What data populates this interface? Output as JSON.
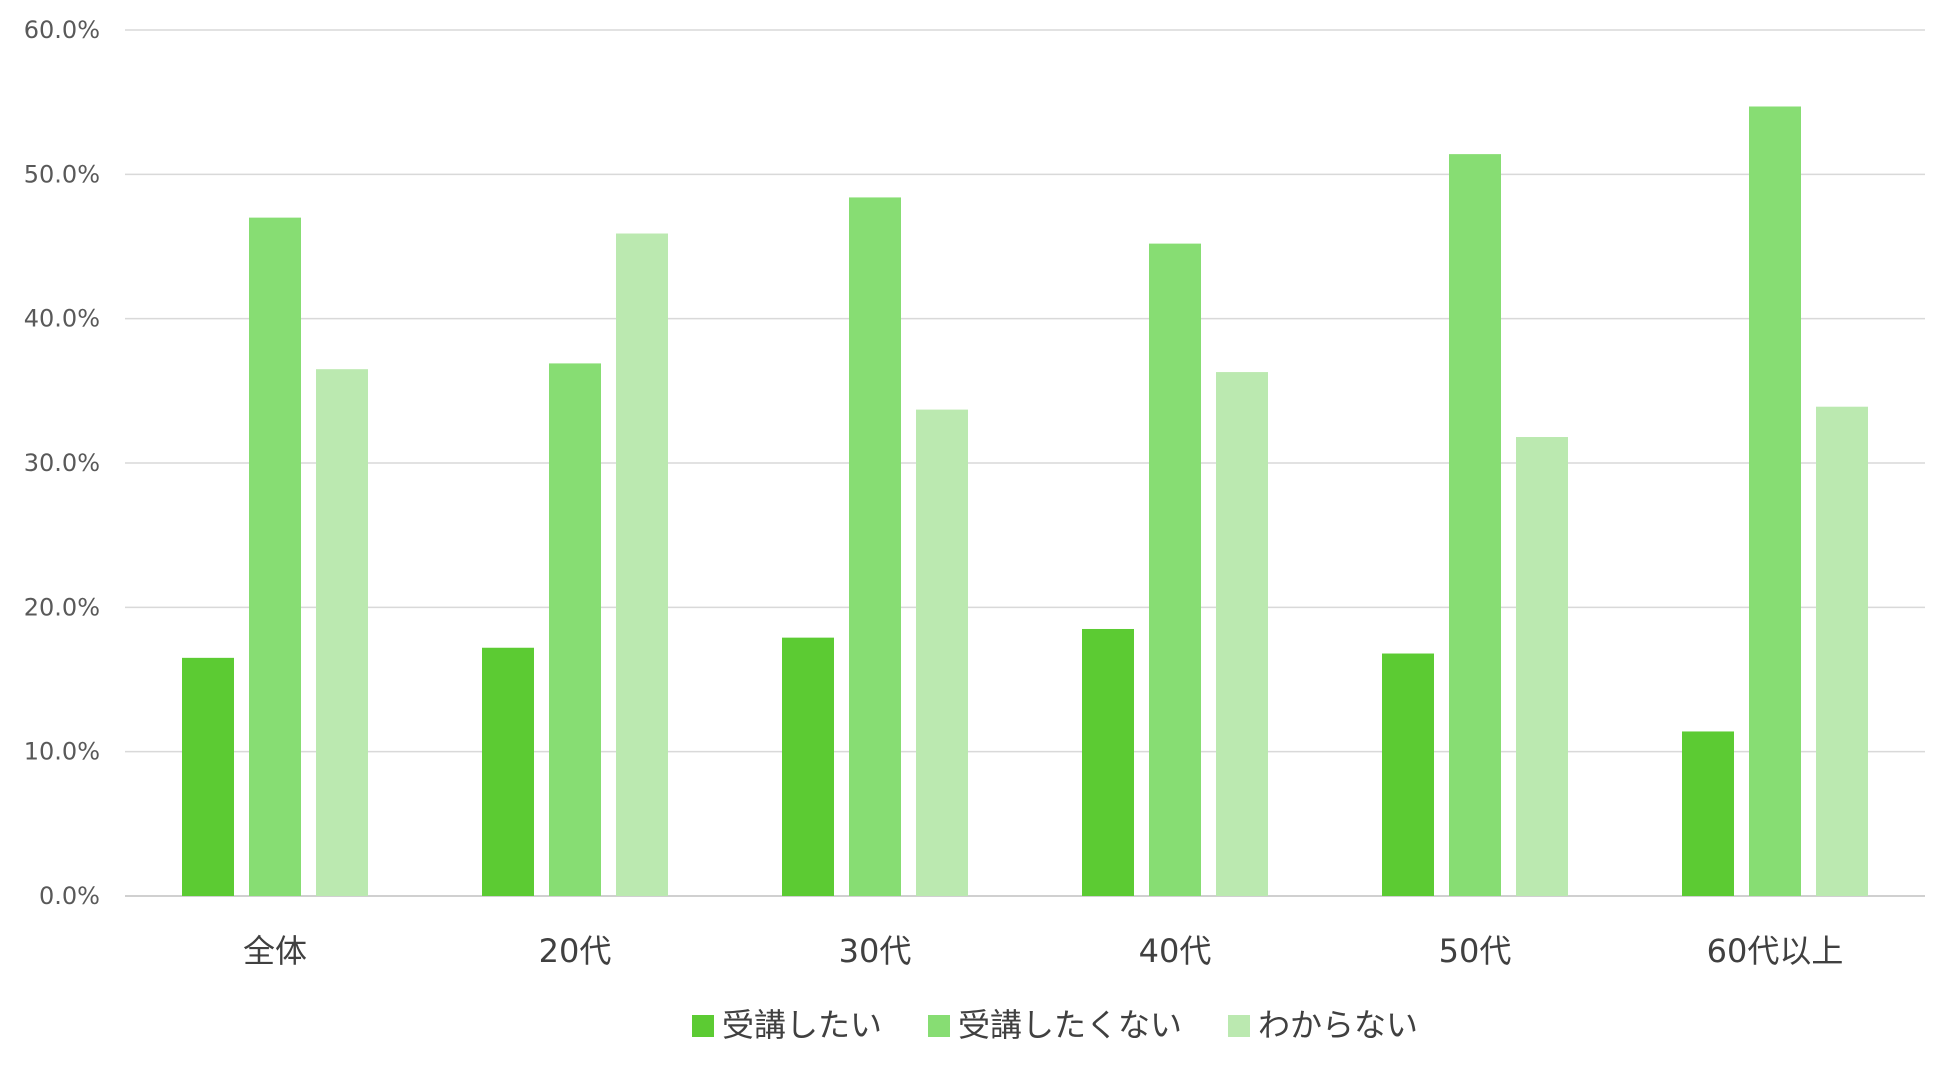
{
  "chart_data": {
    "type": "bar",
    "title": "",
    "xlabel": "",
    "ylabel": "",
    "categories": [
      "全体",
      "20代",
      "30代",
      "40代",
      "50代",
      "60代以上"
    ],
    "series": [
      {
        "name": "受講したい",
        "color": "#5ccb33",
        "values": [
          16.5,
          17.2,
          17.9,
          18.5,
          16.8,
          11.4
        ]
      },
      {
        "name": "受講したくない",
        "color": "#87dd73",
        "values": [
          47.0,
          36.9,
          48.4,
          45.2,
          51.4,
          54.7
        ]
      },
      {
        "name": "わからない",
        "color": "#bbe9b0",
        "values": [
          36.5,
          45.9,
          33.7,
          36.3,
          31.8,
          33.9
        ]
      }
    ],
    "ylim": [
      0,
      60
    ],
    "yticks": [
      "0.0%",
      "10.0%",
      "20.0%",
      "30.0%",
      "40.0%",
      "50.0%",
      "60.0%"
    ],
    "ytick_values": [
      0,
      10,
      20,
      30,
      40,
      50,
      60
    ],
    "grid": true,
    "legend_position": "bottom"
  }
}
